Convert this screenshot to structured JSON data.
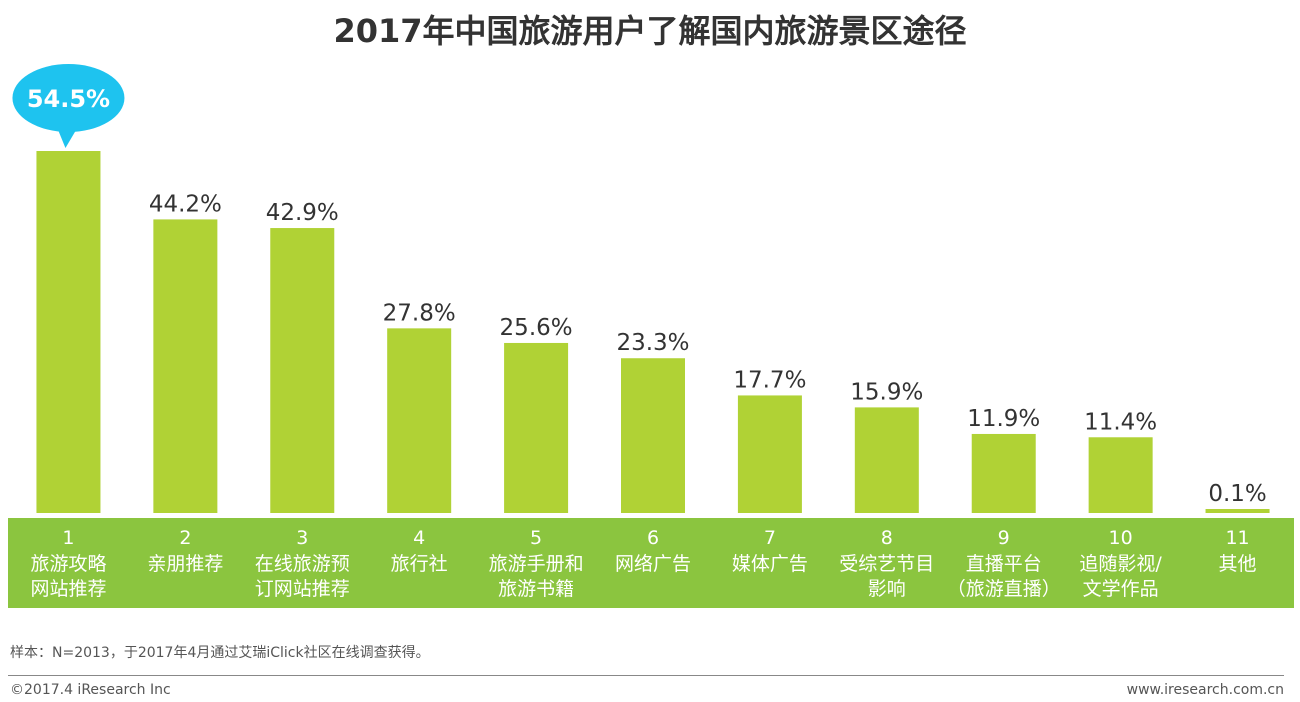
{
  "title": "2017年中国旅游用户了解国内旅游景区途径",
  "chart_data": {
    "type": "bar",
    "title": "2017年中国旅游用户了解国内旅游景区途径",
    "unit": "%",
    "categories": [
      "1",
      "2",
      "3",
      "4",
      "5",
      "6",
      "7",
      "8",
      "9",
      "10",
      "11"
    ],
    "category_labels": [
      [
        "旅游攻略",
        "网站推荐"
      ],
      [
        "亲朋推荐"
      ],
      [
        "在线旅游预",
        "订网站推荐"
      ],
      [
        "旅行社"
      ],
      [
        "旅游手册和",
        "旅游书籍"
      ],
      [
        "网络广告"
      ],
      [
        "媒体广告"
      ],
      [
        "受综艺节目",
        "影响"
      ],
      [
        "直播平台",
        "（旅游直播）"
      ],
      [
        "追随影视/",
        "文学作品"
      ],
      [
        "其他"
      ]
    ],
    "values": [
      54.5,
      44.2,
      42.9,
      27.8,
      25.6,
      23.3,
      17.7,
      15.9,
      11.9,
      11.4,
      0.1
    ],
    "value_labels": [
      "54.5%",
      "44.2%",
      "42.9%",
      "27.8%",
      "25.6%",
      "23.3%",
      "17.7%",
      "15.9%",
      "11.9%",
      "11.4%",
      "0.1%"
    ],
    "highlight_index": 0,
    "ylim": [
      0,
      54.5
    ],
    "grid": false,
    "xlabel": "",
    "ylabel": ""
  },
  "colors": {
    "bar": "#b0d235",
    "band": "#8bc53f",
    "callout": "#1ec3ef",
    "band_text": "#ffffff",
    "value_text": "#333333",
    "callout_text": "#ffffff"
  },
  "footer": {
    "note": "样本：N=2013，于2017年4月通过艾瑞iClick社区在线调查获得。",
    "copyright": "©2017.4 iResearch Inc",
    "website": "www.iresearch.com.cn"
  }
}
